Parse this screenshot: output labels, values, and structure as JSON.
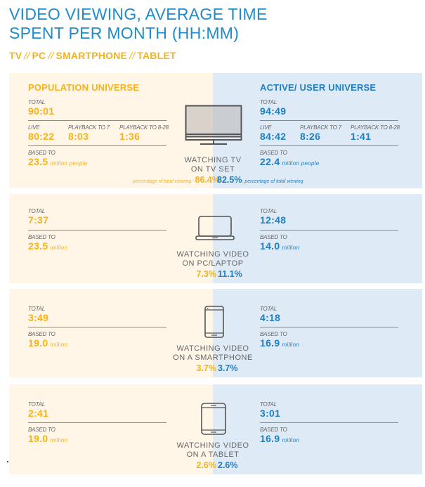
{
  "title": {
    "line1": "VIDEO VIEWING, AVERAGE TIME",
    "line2": "SPENT PER MONTH (HH:MM)"
  },
  "subtitle": {
    "items": [
      "TV",
      "PC",
      "SMARTPHONE",
      "TABLET"
    ],
    "separator": "//"
  },
  "colors": {
    "population_accent": "#f7b21a",
    "user_accent": "#1f7fc0",
    "title_blue": "#1f8bc9",
    "left_bg": "#fff6e8",
    "right_bg": "#deeaf6"
  },
  "tv": {
    "population": {
      "heading": "POPULATION UNIVERSE",
      "total_label": "TOTAL",
      "total": "90:01",
      "live_label": "LIVE",
      "live": "80:22",
      "pb7_label": "PLAYBACK TO 7",
      "pb7": "8:03",
      "pb828_label": "PLAYBACK TO 8-28",
      "pb828": "1:36",
      "based_label": "BASED TO",
      "based_value": "23.5",
      "based_unit": "million people",
      "pct_note": "percentage of total viewing:",
      "pct": "86.4%"
    },
    "user": {
      "heading": "ACTIVE/ USER UNIVERSE",
      "total_label": "TOTAL",
      "total": "94:49",
      "live_label": "LIVE",
      "live": "84:42",
      "pb7_label": "PLAYBACK TO 7",
      "pb7": "8:26",
      "pb828_label": "PLAYBACK TO 8-28",
      "pb828": "1:41",
      "based_label": "BASED TO",
      "based_value": "22.4",
      "based_unit": "million people",
      "pct": "82.5%",
      "pct_note": ": percentage of total viewing"
    },
    "caption_line1": "WATCHING TV",
    "caption_line2": "ON TV SET",
    "icon": "tv-icon"
  },
  "devices": [
    {
      "key": "pc",
      "icon": "laptop-icon",
      "caption_line1": "WATCHING VIDEO",
      "caption_line2": "ON PC/LAPTOP",
      "population": {
        "total_label": "TOTAL",
        "total": "7:37",
        "based_label": "BASED TO",
        "based_value": "23.5",
        "based_unit": "million",
        "pct": "7.3%"
      },
      "user": {
        "total_label": "TOTAL",
        "total": "12:48",
        "based_label": "BASED TO",
        "based_value": "14.0",
        "based_unit": "million",
        "pct": "11.1%"
      }
    },
    {
      "key": "smartphone",
      "icon": "smartphone-icon",
      "caption_line1": "WATCHING VIDEO",
      "caption_line2": "ON A SMARTPHONE",
      "population": {
        "total_label": "TOTAL",
        "total": "3:49",
        "based_label": "BASED TO",
        "based_value": "19.0",
        "based_unit": "million",
        "pct": "3.7%"
      },
      "user": {
        "total_label": "TOTAL",
        "total": "4:18",
        "based_label": "BASED TO",
        "based_value": "16.9",
        "based_unit": "million",
        "pct": "3.7%"
      }
    },
    {
      "key": "tablet",
      "icon": "tablet-icon",
      "caption_line1": "WATCHING VIDEO",
      "caption_line2": "ON A TABLET",
      "population": {
        "total_label": "TOTAL",
        "total": "2:41",
        "based_label": "BASED TO",
        "based_value": "19.0",
        "based_unit": "million",
        "pct": "2.6%"
      },
      "user": {
        "total_label": "TOTAL",
        "total": "3:01",
        "based_label": "BASED TO",
        "based_value": "16.9",
        "based_unit": "million",
        "pct": "2.6%"
      }
    }
  ]
}
